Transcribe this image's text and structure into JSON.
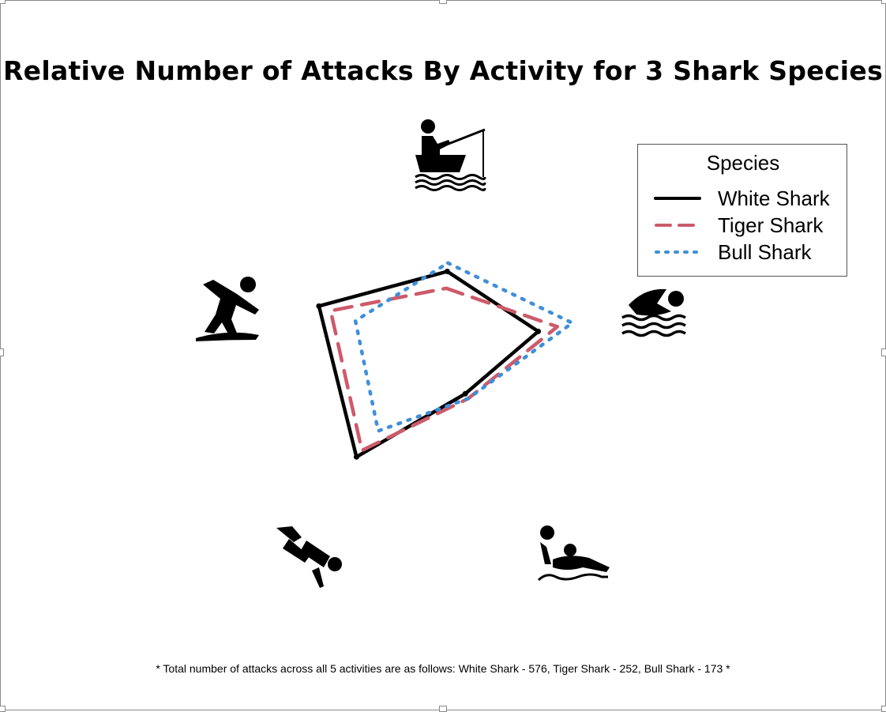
{
  "chart_data": {
    "type": "radar",
    "title": "Relative Number of Attacks By Activity for 3 Shark Species",
    "footnote": "* Total number of attacks across all 5 activities are as follows: White Shark - 576, Tiger Shark - 252, Bull Shark - 173 *",
    "axes": [
      {
        "name": "fishing",
        "icon": "fishing-boat-icon"
      },
      {
        "name": "swimming",
        "icon": "swimmer-icon"
      },
      {
        "name": "water-polo",
        "icon": "water-polo-player-icon"
      },
      {
        "name": "diving",
        "icon": "scuba-diver-icon"
      },
      {
        "name": "surfing",
        "icon": "surfer-icon"
      }
    ],
    "legend": {
      "title": "Species",
      "placement": "top-right"
    },
    "series": [
      {
        "name": "White Shark",
        "color": "#000000",
        "style": "solid",
        "values": [
          0.6,
          0.71,
          0.32,
          0.94,
          0.94
        ]
      },
      {
        "name": "Tiger Shark",
        "color": "#cd5a6a",
        "style": "dashed",
        "values": [
          0.48,
          0.85,
          0.36,
          0.88,
          0.85
        ]
      },
      {
        "name": "Bull Shark",
        "color": "#3f8fd9",
        "style": "dotted",
        "values": [
          0.66,
          0.96,
          0.36,
          0.7,
          0.66
        ]
      }
    ]
  }
}
